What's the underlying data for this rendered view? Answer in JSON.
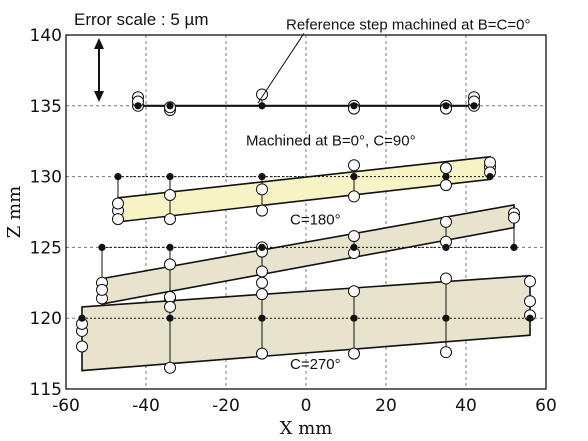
{
  "chart_data": {
    "type": "scatter",
    "xlabel": "X mm",
    "ylabel": "Z mm",
    "xlim": [
      -60,
      60
    ],
    "ylim": [
      115,
      140
    ],
    "xticks": [
      -60,
      -40,
      -20,
      0,
      20,
      40,
      60
    ],
    "yticks": [
      115,
      120,
      125,
      130,
      135,
      140
    ],
    "grid": true,
    "scale_text": "Error scale : 5 µm",
    "colors": {
      "fill_90": "#f7f3c4",
      "fill_other": "#e8e3cc",
      "line": "#111111",
      "grid": "#777777"
    },
    "annotations": [
      {
        "text": "Reference step machined at B=C=0°",
        "x": -5,
        "y": 140.4,
        "pointer": [
          -12,
          135.2
        ]
      },
      {
        "text": "Machined at B=0°, C=90°",
        "x": -15,
        "y": 132.2
      },
      {
        "text": "C=180°",
        "x": -4,
        "y": 126.6
      },
      {
        "text": "C=270°",
        "x": -4,
        "y": 116.4
      }
    ],
    "series": [
      {
        "id": "reference",
        "nominal": [
          [
            -42,
            135
          ],
          [
            -34,
            135
          ],
          [
            -11,
            135
          ],
          [
            12,
            135
          ],
          [
            35,
            135
          ],
          [
            42,
            135
          ]
        ],
        "measured": [
          [
            -42,
            135.3
          ],
          [
            -34,
            134.9
          ],
          [
            -11,
            135.8
          ],
          [
            12,
            134.8
          ],
          [
            35,
            134.8
          ],
          [
            42,
            135.3
          ]
        ],
        "extra_measured": [
          [
            -42,
            135.6
          ],
          [
            -42,
            135.0
          ],
          [
            -34,
            134.7
          ],
          [
            12,
            135.0
          ],
          [
            35,
            135.0
          ],
          [
            42,
            135.6
          ],
          [
            42,
            135.0
          ]
        ]
      },
      {
        "id": "c90",
        "nominal": [
          [
            -47,
            130
          ],
          [
            -34,
            130
          ],
          [
            -11,
            130
          ],
          [
            12,
            130
          ],
          [
            35,
            130
          ],
          [
            46,
            130
          ]
        ],
        "measured": [
          [
            -47,
            127.0
          ],
          [
            -34,
            127.0
          ],
          [
            -11,
            127.6
          ],
          [
            12,
            128.6
          ],
          [
            35,
            129.4
          ],
          [
            46,
            130.3
          ]
        ],
        "upper_edge": [
          [
            -47,
            128.5
          ],
          [
            46,
            131.4
          ]
        ],
        "lower_edge": [
          [
            -47,
            126.8
          ],
          [
            46,
            129.8
          ]
        ],
        "extra_measured": [
          [
            -47,
            127.6
          ],
          [
            -47,
            128.1
          ],
          [
            -34,
            128.7
          ],
          [
            -11,
            129.1
          ],
          [
            12,
            130.8
          ],
          [
            35,
            130.6
          ],
          [
            46,
            130.7
          ],
          [
            46,
            131.0
          ]
        ]
      },
      {
        "id": "c180",
        "nominal": [
          [
            -51,
            125
          ],
          [
            -34,
            125
          ],
          [
            -11,
            125
          ],
          [
            12,
            125
          ],
          [
            35,
            125
          ],
          [
            52,
            125
          ]
        ],
        "measured": [
          [
            -51,
            122.0
          ],
          [
            -34,
            123.8
          ],
          [
            -11,
            124.7
          ],
          [
            12,
            124.6
          ],
          [
            35,
            125.4
          ],
          [
            52,
            127.1
          ]
        ],
        "upper_edge": [
          [
            -51,
            122.8
          ],
          [
            52,
            128.0
          ]
        ],
        "lower_edge": [
          [
            -51,
            121.0
          ],
          [
            52,
            126.4
          ]
        ],
        "extra_measured": [
          [
            -51,
            122.5
          ],
          [
            -51,
            121.4
          ],
          [
            -34,
            121.4
          ],
          [
            -11,
            123.3
          ],
          [
            -11,
            125.0
          ],
          [
            12,
            125.8
          ],
          [
            35,
            126.8
          ],
          [
            52,
            127.4
          ]
        ]
      },
      {
        "id": "c270",
        "nominal": [
          [
            -56,
            120
          ],
          [
            -34,
            120
          ],
          [
            -11,
            120
          ],
          [
            12,
            120
          ],
          [
            35,
            120
          ],
          [
            56,
            120
          ]
        ],
        "measured": [
          [
            -56,
            119.6
          ],
          [
            -34,
            116.5
          ],
          [
            -11,
            117.5
          ],
          [
            12,
            117.5
          ],
          [
            35,
            117.6
          ],
          [
            56,
            120.2
          ]
        ],
        "upper_edge": [
          [
            -56,
            120.8
          ],
          [
            56,
            123.0
          ]
        ],
        "lower_edge": [
          [
            -56,
            116.3
          ],
          [
            56,
            118.8
          ]
        ],
        "extra_measured": [
          [
            -56,
            118.0
          ],
          [
            -56,
            119.1
          ],
          [
            -34,
            121.5
          ],
          [
            -34,
            120.8
          ],
          [
            -11,
            122.5
          ],
          [
            -11,
            121.7
          ],
          [
            12,
            121.9
          ],
          [
            35,
            122.8
          ],
          [
            56,
            122.6
          ],
          [
            56,
            121.2
          ]
        ]
      }
    ]
  }
}
